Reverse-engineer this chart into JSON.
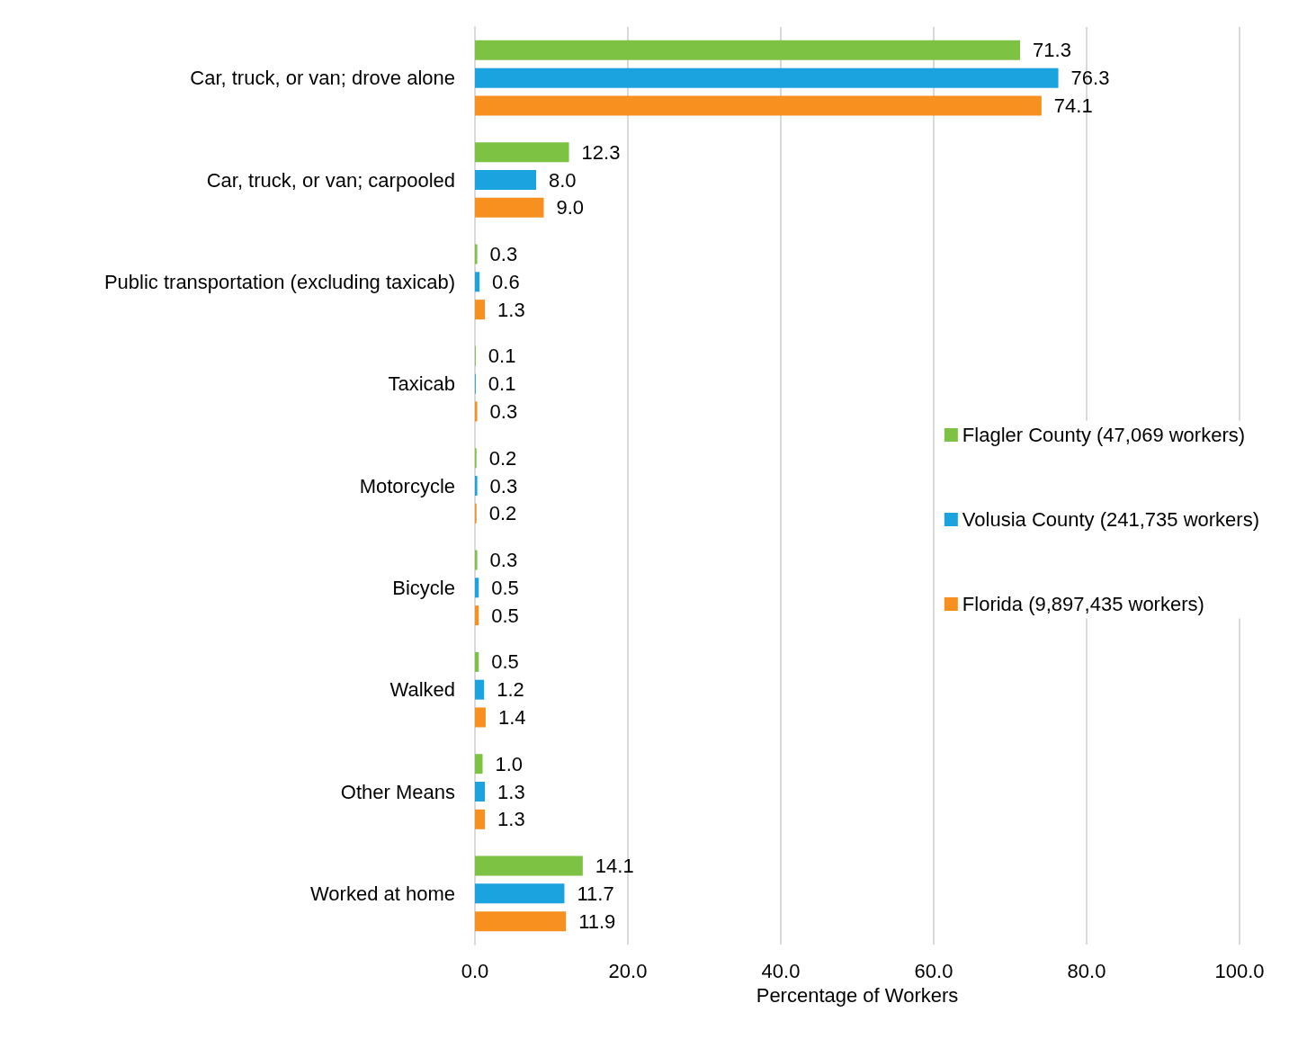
{
  "chart_data": {
    "type": "bar",
    "orientation": "horizontal",
    "xlabel": "Percentage of Workers",
    "categories": [
      "Car, truck, or van; drove alone",
      "Car, truck, or van; carpooled",
      "Public transportation (excluding taxicab)",
      "Taxicab",
      "Motorcycle",
      "Bicycle",
      "Walked",
      "Other Means",
      "Worked at home"
    ],
    "series": [
      {
        "name": "Flagler County (47,069 workers)",
        "color": "#7dc242",
        "values": [
          71.3,
          12.3,
          0.3,
          0.1,
          0.2,
          0.3,
          0.5,
          1.0,
          14.1
        ],
        "value_labels": [
          "71.3",
          "12.3",
          "0.3",
          "0.1",
          "0.2",
          "0.3",
          "0.5",
          "1.0",
          "14.1"
        ]
      },
      {
        "name": "Volusia County (241,735 workers)",
        "color": "#1ba3e0",
        "values": [
          76.3,
          8.0,
          0.6,
          0.1,
          0.3,
          0.5,
          1.2,
          1.3,
          11.7
        ],
        "value_labels": [
          "76.3",
          "8.0",
          "0.6",
          "0.1",
          "0.3",
          "0.5",
          "1.2",
          "1.3",
          "11.7"
        ]
      },
      {
        "name": "Florida (9,897,435 workers)",
        "color": "#f7901e",
        "values": [
          74.1,
          9.0,
          1.3,
          0.3,
          0.2,
          0.5,
          1.4,
          1.3,
          11.9
        ],
        "value_labels": [
          "74.1",
          "9.0",
          "1.3",
          "0.3",
          "0.2",
          "0.5",
          "1.4",
          "1.3",
          "11.9"
        ]
      }
    ],
    "xlim": [
      0,
      100
    ],
    "xticks": [
      {
        "value": 0,
        "label": "0.0"
      },
      {
        "value": 20,
        "label": "20.0"
      },
      {
        "value": 40,
        "label": "40.0"
      },
      {
        "value": 60,
        "label": "60.0"
      },
      {
        "value": 80,
        "label": "80.0"
      },
      {
        "value": 100,
        "label": "100.0"
      }
    ],
    "grid": "x",
    "legend": "right"
  }
}
